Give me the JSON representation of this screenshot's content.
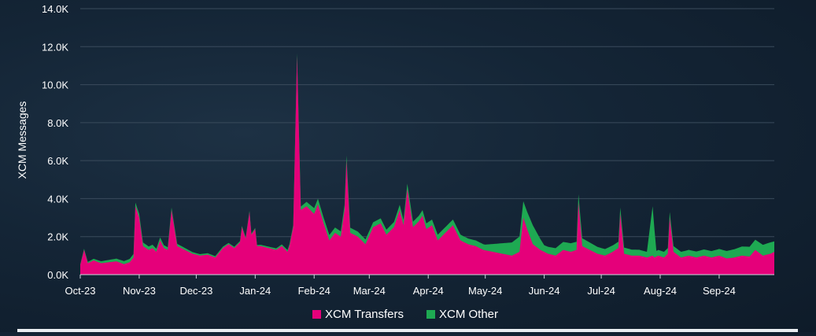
{
  "chart_data": {
    "type": "area",
    "stacked": true,
    "title": "",
    "xlabel": "",
    "ylabel": "XCM Messages",
    "ylim": [
      0,
      14000
    ],
    "y_ticks": [
      0,
      2000,
      4000,
      6000,
      8000,
      10000,
      12000,
      14000
    ],
    "y_tick_labels": [
      "0.0K",
      "2.0K",
      "4.0K",
      "6.0K",
      "8.0K",
      "10.0K",
      "12.0K",
      "14.0K"
    ],
    "x_range": [
      "2023-10-01",
      "2024-09-30"
    ],
    "x_ticks": [
      "2023-10-01",
      "2023-11-01",
      "2023-12-01",
      "2024-01-01",
      "2024-02-01",
      "2024-03-01",
      "2024-04-01",
      "2024-05-01",
      "2024-06-01",
      "2024-07-01",
      "2024-08-01",
      "2024-09-01"
    ],
    "x_tick_labels": [
      "Oct-23",
      "Nov-23",
      "Dec-23",
      "Jan-24",
      "Feb-24",
      "Mar-24",
      "Apr-24",
      "May-24",
      "Jun-24",
      "Jul-24",
      "Aug-24",
      "Sep-24"
    ],
    "grid": true,
    "legend_position": "bottom-center",
    "series": [
      {
        "name": "XCM Transfers",
        "color": "#e5007a",
        "x": [
          "2023-10-01",
          "2023-10-03",
          "2023-10-05",
          "2023-10-08",
          "2023-10-12",
          "2023-10-16",
          "2023-10-20",
          "2023-10-24",
          "2023-10-27",
          "2023-10-29",
          "2023-10-30",
          "2023-11-01",
          "2023-11-03",
          "2023-11-06",
          "2023-11-08",
          "2023-11-10",
          "2023-11-12",
          "2023-11-14",
          "2023-11-16",
          "2023-11-18",
          "2023-11-21",
          "2023-11-25",
          "2023-11-29",
          "2023-12-03",
          "2023-12-07",
          "2023-12-11",
          "2023-12-15",
          "2023-12-18",
          "2023-12-21",
          "2023-12-24",
          "2023-12-25",
          "2023-12-27",
          "2023-12-29",
          "2023-12-30",
          "2024-01-01",
          "2024-01-02",
          "2024-01-04",
          "2024-01-08",
          "2024-01-12",
          "2024-01-15",
          "2024-01-17",
          "2024-01-18",
          "2024-01-19",
          "2024-01-21",
          "2024-01-23",
          "2024-01-25",
          "2024-01-28",
          "2024-02-01",
          "2024-02-03",
          "2024-02-06",
          "2024-02-09",
          "2024-02-12",
          "2024-02-15",
          "2024-02-17",
          "2024-02-18",
          "2024-02-20",
          "2024-02-24",
          "2024-02-28",
          "2024-03-03",
          "2024-03-07",
          "2024-03-10",
          "2024-03-14",
          "2024-03-17",
          "2024-03-19",
          "2024-03-21",
          "2024-03-24",
          "2024-03-27",
          "2024-03-29",
          "2024-03-31",
          "2024-04-03",
          "2024-04-06",
          "2024-04-10",
          "2024-04-14",
          "2024-04-18",
          "2024-04-22",
          "2024-04-26",
          "2024-04-30",
          "2024-05-05",
          "2024-05-10",
          "2024-05-15",
          "2024-05-19",
          "2024-05-21",
          "2024-05-23",
          "2024-05-26",
          "2024-05-30",
          "2024-06-03",
          "2024-06-07",
          "2024-06-11",
          "2024-06-15",
          "2024-06-18",
          "2024-06-19",
          "2024-06-21",
          "2024-06-25",
          "2024-06-29",
          "2024-07-03",
          "2024-07-07",
          "2024-07-10",
          "2024-07-11",
          "2024-07-13",
          "2024-07-17",
          "2024-07-21",
          "2024-07-25",
          "2024-07-28",
          "2024-07-29",
          "2024-07-31",
          "2024-08-03",
          "2024-08-05",
          "2024-08-06",
          "2024-08-08",
          "2024-08-12",
          "2024-08-16",
          "2024-08-20",
          "2024-08-24",
          "2024-08-28",
          "2024-09-01",
          "2024-09-05",
          "2024-09-09",
          "2024-09-13",
          "2024-09-17",
          "2024-09-20",
          "2024-09-24",
          "2024-09-28",
          "2024-09-30"
        ],
        "values": [
          500,
          1300,
          600,
          750,
          600,
          650,
          700,
          550,
          650,
          900,
          3600,
          3000,
          1500,
          1300,
          1400,
          1200,
          1800,
          1400,
          1300,
          3400,
          1500,
          1300,
          1100,
          1000,
          1050,
          900,
          1400,
          1600,
          1400,
          1700,
          2500,
          1900,
          3300,
          2100,
          2400,
          1500,
          1500,
          1400,
          1300,
          1500,
          1300,
          1200,
          1500,
          2500,
          11500,
          3400,
          3600,
          3200,
          3700,
          2700,
          1800,
          2200,
          2000,
          3400,
          6000,
          2200,
          2000,
          1600,
          2500,
          2700,
          2100,
          2500,
          3400,
          2600,
          4500,
          2500,
          2800,
          3100,
          2400,
          2600,
          1800,
          2200,
          2600,
          1800,
          1600,
          1500,
          1300,
          1200,
          1100,
          1000,
          1200,
          3000,
          2400,
          1600,
          1300,
          1100,
          1000,
          1300,
          1200,
          1300,
          3800,
          1500,
          1300,
          1100,
          1000,
          1200,
          1400,
          3200,
          1100,
          1000,
          1000,
          900,
          1000,
          900,
          1000,
          900,
          1100,
          3000,
          1200,
          900,
          1000,
          900,
          1000,
          900,
          1000,
          850,
          900,
          1000,
          950,
          1300,
          1000,
          1100,
          1200
        ]
      },
      {
        "name": "XCM Other",
        "color": "#1ea952",
        "x": [
          "2023-10-01",
          "2023-11-01",
          "2023-12-01",
          "2024-01-01",
          "2024-01-20",
          "2024-02-01",
          "2024-03-01",
          "2024-04-01",
          "2024-05-01",
          "2024-05-26",
          "2024-06-01",
          "2024-06-15",
          "2024-07-01",
          "2024-07-25",
          "2024-07-28",
          "2024-07-30",
          "2024-08-01",
          "2024-08-05",
          "2024-08-15",
          "2024-09-01",
          "2024-09-15",
          "2024-09-28",
          "2024-09-30"
        ],
        "values": [
          50,
          200,
          80,
          60,
          100,
          300,
          250,
          300,
          300,
          1000,
          350,
          450,
          350,
          300,
          2600,
          300,
          300,
          300,
          300,
          350,
          500,
          600,
          550
        ]
      }
    ]
  }
}
